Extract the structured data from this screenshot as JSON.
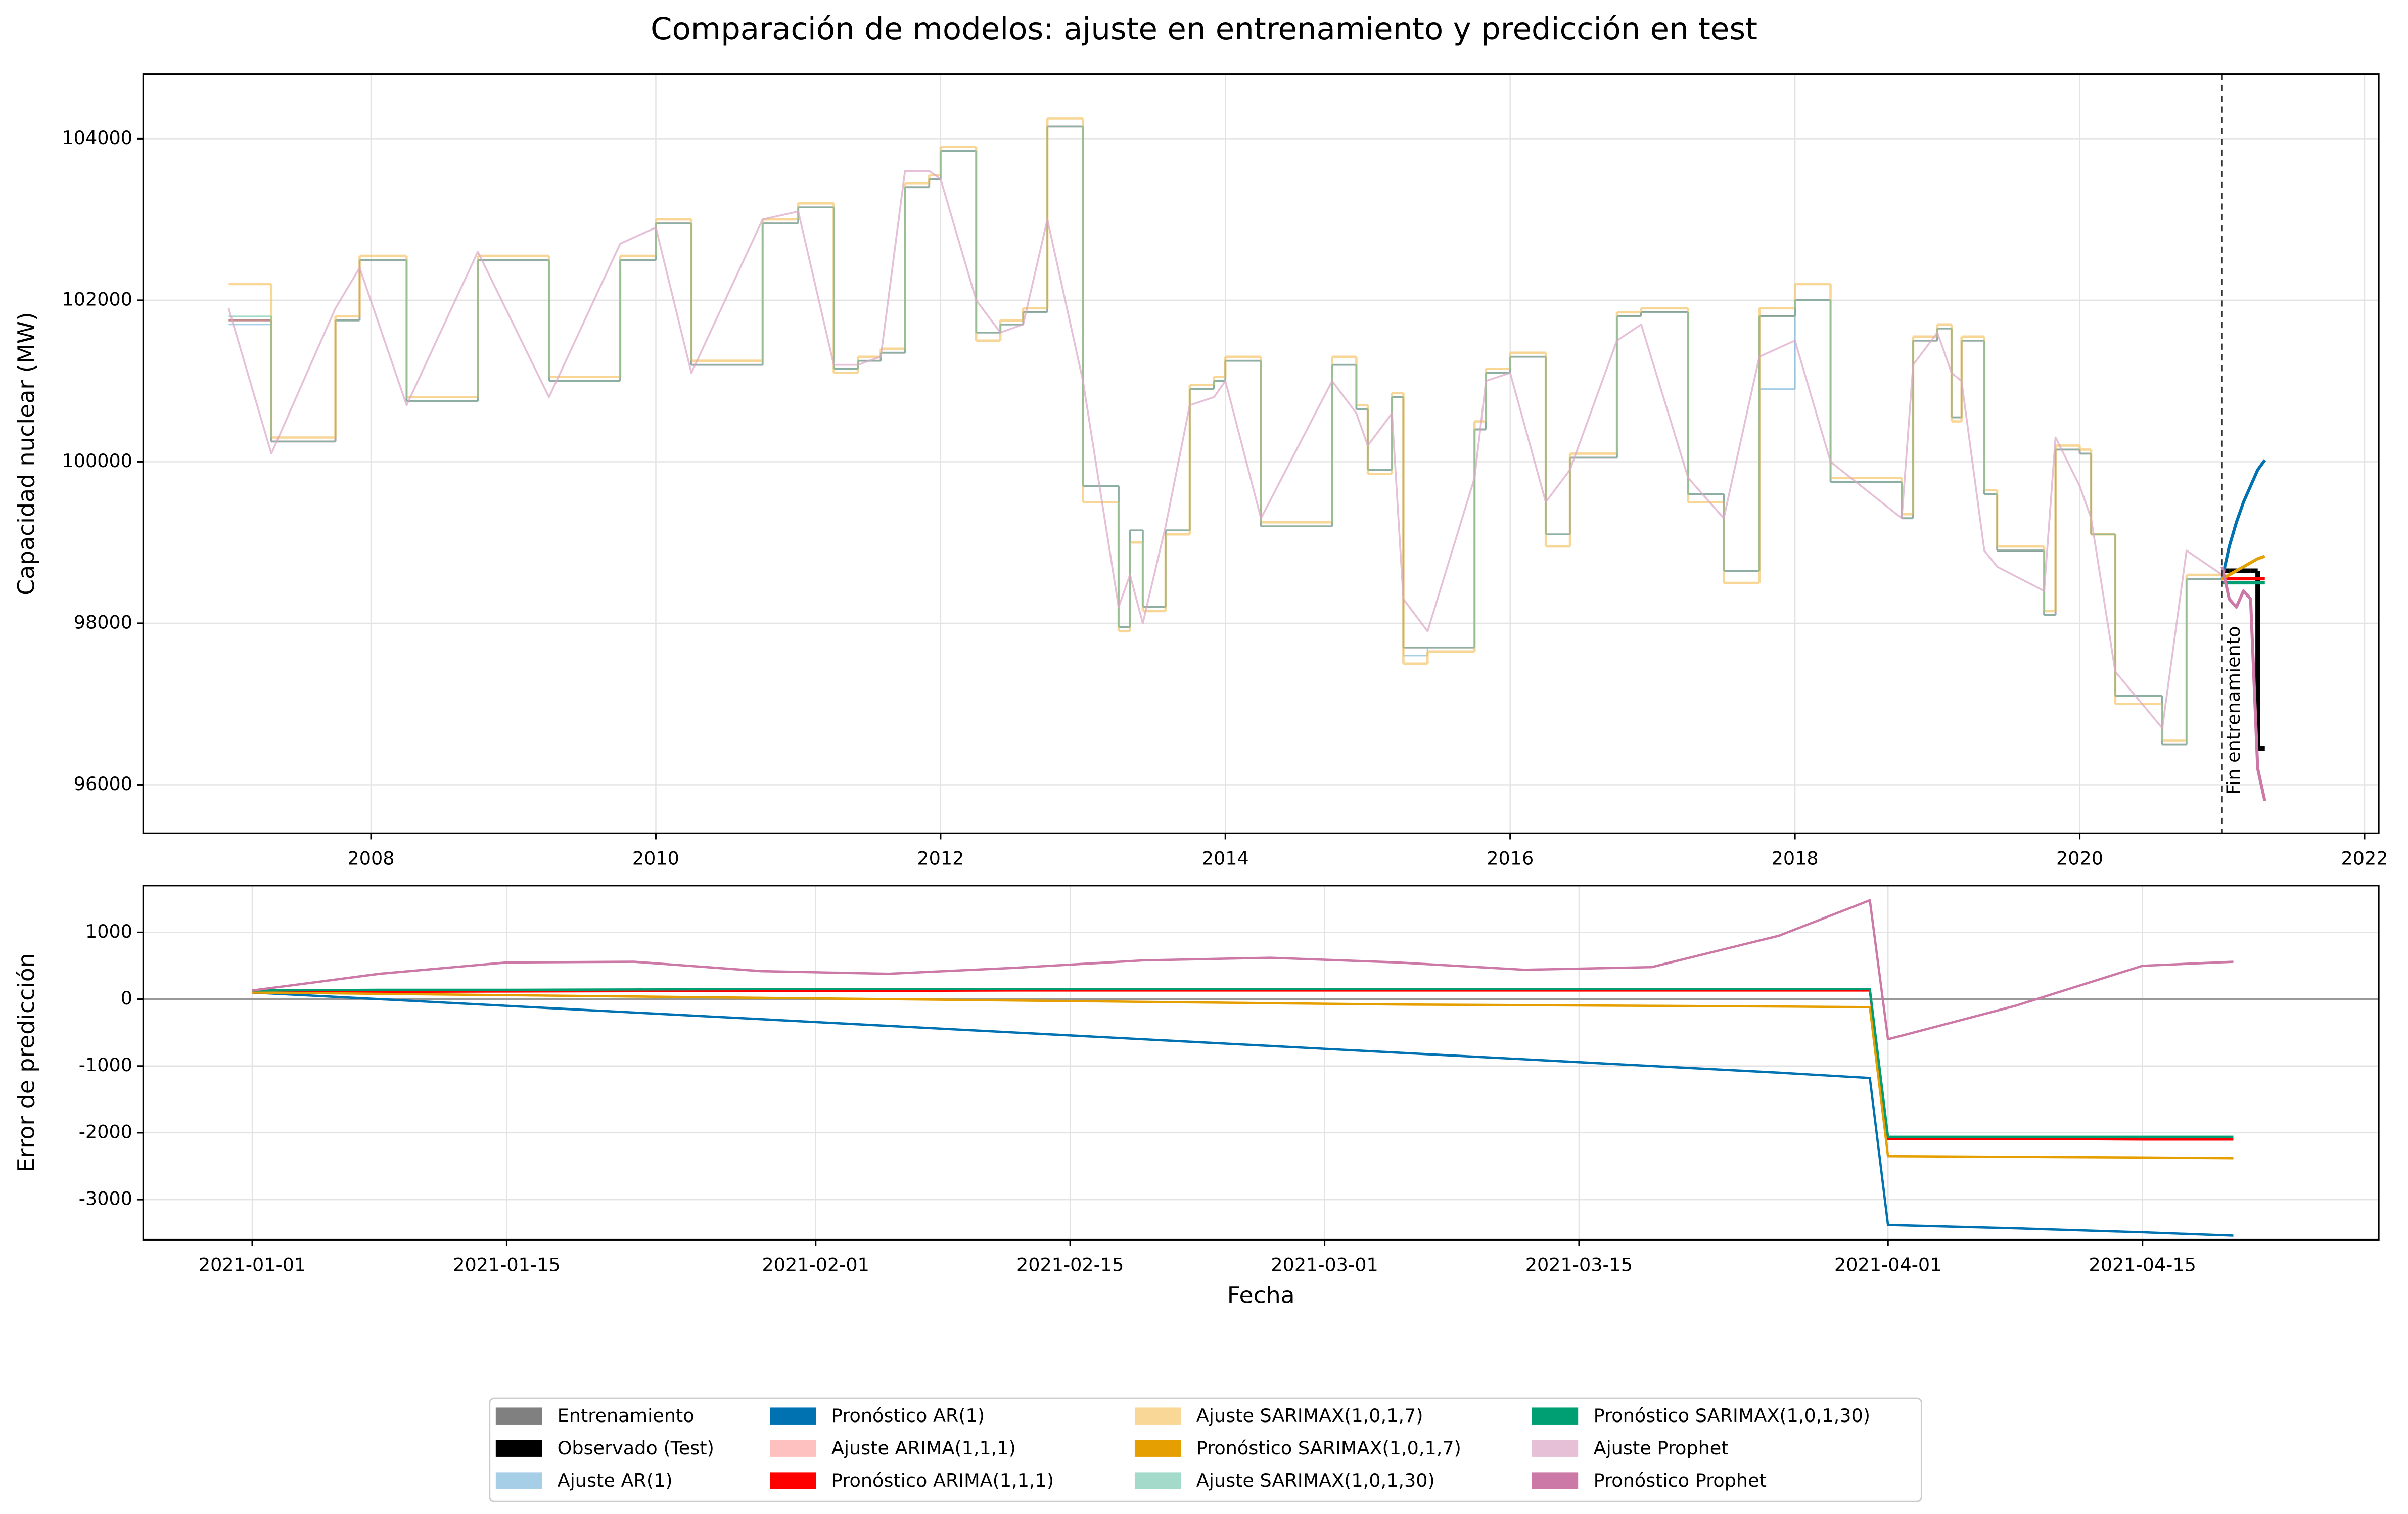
{
  "chart_data": [
    {
      "type": "line",
      "title": "Comparación de modelos: ajuste en entrenamiento y predicción en test",
      "y_label": "Capacidad nuclear (MW)",
      "xlim": [
        2006.4,
        2022.1
      ],
      "xticks": [
        2008,
        2010,
        2012,
        2014,
        2016,
        2018,
        2020,
        2022
      ],
      "ylim": [
        95400,
        104800
      ],
      "yticks": [
        96000,
        98000,
        100000,
        102000,
        104000
      ],
      "grid": true,
      "annotation": {
        "text": "Fin entrenamiento",
        "x": 2021.0
      },
      "x": [
        2007.0,
        2007.3,
        2007.75,
        2007.92,
        2008.25,
        2008.75,
        2009.25,
        2009.75,
        2010.0,
        2010.25,
        2010.75,
        2011.0,
        2011.25,
        2011.42,
        2011.58,
        2011.75,
        2011.92,
        2012.0,
        2012.25,
        2012.42,
        2012.58,
        2012.75,
        2013.0,
        2013.25,
        2013.33,
        2013.42,
        2013.58,
        2013.75,
        2013.92,
        2014.0,
        2014.25,
        2014.75,
        2014.92,
        2015.0,
        2015.17,
        2015.25,
        2015.42,
        2015.75,
        2015.83,
        2016.0,
        2016.25,
        2016.42,
        2016.75,
        2016.92,
        2017.25,
        2017.5,
        2017.75,
        2018.0,
        2018.25,
        2018.75,
        2018.83,
        2019.0,
        2019.1,
        2019.17,
        2019.33,
        2019.42,
        2019.75,
        2019.83,
        2020.0,
        2020.08,
        2020.25,
        2020.58,
        2020.75,
        2021.0
      ],
      "series": [
        {
          "name": "Entrenamiento",
          "color": "#808080",
          "alpha": 1,
          "linewidth": 1.2,
          "step": true,
          "values": [
            101750,
            100250,
            101750,
            102500,
            100750,
            102500,
            101000,
            102500,
            102950,
            101200,
            102950,
            103150,
            101150,
            101250,
            101350,
            103400,
            103500,
            103850,
            101600,
            101700,
            101850,
            104150,
            99700,
            97950,
            99150,
            98200,
            99150,
            100900,
            101000,
            101250,
            99200,
            101200,
            100650,
            99900,
            100800,
            97700,
            97700,
            100400,
            101100,
            101300,
            99100,
            100050,
            101800,
            101850,
            99600,
            98650,
            101800,
            102000,
            99750,
            99300,
            101500,
            101650,
            100550,
            101500,
            99600,
            98900,
            98100,
            100150,
            100100,
            99100,
            97100,
            96500,
            98550,
            98550
          ]
        },
        {
          "name": "Observado (Test)",
          "color": "#000000",
          "alpha": 1,
          "linewidth": 3,
          "step": true,
          "x": [
            2021.0,
            2021.05,
            2021.1,
            2021.15,
            2021.2,
            2021.25,
            2021.3
          ],
          "values": [
            98650,
            98650,
            98650,
            98650,
            98650,
            96450,
            96450
          ]
        },
        {
          "name": "Ajuste AR(1)",
          "color": "#6baed6",
          "alpha": 0.6,
          "linewidth": 1,
          "step": true,
          "values": [
            101700,
            100250,
            101750,
            102500,
            100750,
            102500,
            101000,
            102500,
            102950,
            101200,
            102950,
            103150,
            101150,
            101250,
            101350,
            103400,
            103500,
            103850,
            101600,
            101700,
            101850,
            104150,
            99700,
            97950,
            99150,
            98200,
            99150,
            100900,
            101000,
            101250,
            99200,
            101200,
            100650,
            99900,
            100800,
            97600,
            97700,
            100400,
            101100,
            101300,
            99100,
            100050,
            101800,
            101850,
            99600,
            98650,
            100900,
            102000,
            99750,
            99300,
            101500,
            101650,
            100550,
            101500,
            99600,
            98900,
            98100,
            100150,
            100100,
            99100,
            97100,
            96500,
            98550,
            98550
          ]
        },
        {
          "name": "Pronóstico AR(1)",
          "color": "#0072b2",
          "alpha": 1,
          "linewidth": 2,
          "x": [
            2021.0,
            2021.05,
            2021.1,
            2021.15,
            2021.2,
            2021.25,
            2021.3
          ],
          "values": [
            98550,
            98950,
            99250,
            99500,
            99700,
            99900,
            100020
          ]
        },
        {
          "name": "Ajuste ARIMA(1,1,1)",
          "color": "#ff9896",
          "alpha": 0.6,
          "linewidth": 1,
          "step": true,
          "values": [
            101750,
            100250,
            101750,
            102500,
            100750,
            102500,
            101000,
            102500,
            102950,
            101200,
            102950,
            103150,
            101150,
            101250,
            101350,
            103400,
            103500,
            103850,
            101600,
            101700,
            101850,
            104150,
            99700,
            97950,
            99150,
            98200,
            99150,
            100900,
            101000,
            101250,
            99200,
            101200,
            100650,
            99900,
            100800,
            97700,
            97700,
            100400,
            101100,
            101300,
            99100,
            100050,
            101800,
            101850,
            99600,
            98650,
            101800,
            102000,
            99750,
            99300,
            101500,
            101650,
            100550,
            101500,
            99600,
            98900,
            98100,
            100150,
            100100,
            99100,
            97100,
            96500,
            98550,
            98550
          ]
        },
        {
          "name": "Pronóstico ARIMA(1,1,1)",
          "color": "#ff0000",
          "alpha": 1,
          "linewidth": 2,
          "x": [
            2021.0,
            2021.05,
            2021.1,
            2021.15,
            2021.2,
            2021.25,
            2021.3
          ],
          "values": [
            98550,
            98550,
            98550,
            98550,
            98550,
            98550,
            98550
          ]
        },
        {
          "name": "Ajuste SARIMAX(1,0,1,7)",
          "color": "#f5c66b",
          "alpha": 0.7,
          "linewidth": 1.5,
          "step": true,
          "values": [
            102200,
            100300,
            101800,
            102550,
            100800,
            102550,
            101050,
            102550,
            103000,
            101250,
            103000,
            103200,
            101100,
            101300,
            101400,
            103450,
            103550,
            103900,
            101500,
            101750,
            101900,
            104250,
            99500,
            97900,
            99000,
            98150,
            99100,
            100950,
            101050,
            101300,
            99250,
            101300,
            100700,
            99850,
            100850,
            97500,
            97650,
            100500,
            101150,
            101350,
            98950,
            100100,
            101850,
            101900,
            99500,
            98500,
            101900,
            102200,
            99800,
            99350,
            101550,
            101700,
            100500,
            101550,
            99650,
            98950,
            98150,
            100200,
            100150,
            99100,
            97000,
            96550,
            98600,
            98600
          ]
        },
        {
          "name": "Pronóstico SARIMAX(1,0,1,7)",
          "color": "#e69f00",
          "alpha": 1,
          "linewidth": 2,
          "x": [
            2021.0,
            2021.05,
            2021.1,
            2021.15,
            2021.2,
            2021.25,
            2021.3
          ],
          "values": [
            98550,
            98600,
            98650,
            98700,
            98750,
            98800,
            98830
          ]
        },
        {
          "name": "Ajuste SARIMAX(1,0,1,30)",
          "color": "#66c2a5",
          "alpha": 0.6,
          "linewidth": 1,
          "step": true,
          "values": [
            101800,
            100250,
            101750,
            102500,
            100750,
            102500,
            101000,
            102500,
            102950,
            101200,
            102950,
            103150,
            101150,
            101250,
            101350,
            103400,
            103500,
            103850,
            101600,
            101700,
            101850,
            104150,
            99700,
            97950,
            99150,
            98200,
            99150,
            100900,
            101000,
            101250,
            99200,
            101200,
            100650,
            99900,
            100800,
            97700,
            97700,
            100400,
            101100,
            101300,
            99100,
            100050,
            101800,
            101850,
            99600,
            98650,
            101800,
            102000,
            99750,
            99300,
            101500,
            101650,
            100550,
            101500,
            99600,
            98900,
            98100,
            100150,
            100100,
            99100,
            97100,
            96500,
            98550,
            98550
          ]
        },
        {
          "name": "Pronóstico SARIMAX(1,0,1,30)",
          "color": "#009e73",
          "alpha": 1,
          "linewidth": 2,
          "x": [
            2021.0,
            2021.05,
            2021.1,
            2021.15,
            2021.2,
            2021.25,
            2021.3
          ],
          "values": [
            98500,
            98500,
            98500,
            98500,
            98500,
            98500,
            98500
          ]
        },
        {
          "name": "Ajuste Prophet",
          "color": "#dba5c6",
          "alpha": 0.7,
          "linewidth": 1.2,
          "values": [
            101900,
            100100,
            101900,
            102400,
            100700,
            102600,
            100800,
            102700,
            102900,
            101100,
            103000,
            103100,
            101200,
            101200,
            101300,
            103600,
            103600,
            103500,
            102000,
            101600,
            101700,
            103000,
            101000,
            98200,
            98600,
            98000,
            99200,
            100700,
            100800,
            101000,
            99300,
            101000,
            100600,
            100200,
            100600,
            98300,
            97900,
            99800,
            101000,
            101100,
            99500,
            99900,
            101500,
            101700,
            99800,
            99300,
            101300,
            101500,
            100000,
            99300,
            101200,
            101600,
            101100,
            101000,
            98900,
            98700,
            98400,
            100300,
            99700,
            99300,
            97400,
            96700,
            98900,
            98600
          ]
        },
        {
          "name": "Pronóstico Prophet",
          "color": "#cc79a7",
          "alpha": 1,
          "linewidth": 2,
          "x": [
            2021.0,
            2021.05,
            2021.1,
            2021.15,
            2021.2,
            2021.25,
            2021.3
          ],
          "values": [
            98700,
            98300,
            98200,
            98400,
            98300,
            96200,
            95800
          ]
        }
      ]
    },
    {
      "type": "line",
      "y_label": "Error de predicción",
      "x_label": "Fecha",
      "xlim": [
        "2020-12-26",
        "2021-04-28"
      ],
      "xticks": [
        "2021-01-01",
        "2021-01-15",
        "2021-02-01",
        "2021-02-15",
        "2021-03-01",
        "2021-03-15",
        "2021-04-01",
        "2021-04-15"
      ],
      "ylim": [
        -3600,
        1700
      ],
      "yticks": [
        -3000,
        -2000,
        -1000,
        0,
        1000
      ],
      "grid": true,
      "hline": 0,
      "x": [
        "2021-01-01",
        "2021-01-08",
        "2021-01-15",
        "2021-01-22",
        "2021-01-29",
        "2021-02-05",
        "2021-02-12",
        "2021-02-19",
        "2021-02-26",
        "2021-03-05",
        "2021-03-12",
        "2021-03-19",
        "2021-03-26",
        "2021-03-31",
        "2021-04-01",
        "2021-04-08",
        "2021-04-15",
        "2021-04-20"
      ],
      "series": [
        {
          "color": "#0072b2",
          "alpha": 1,
          "linewidth": 1.5,
          "values": [
            100,
            0,
            -100,
            -200,
            -300,
            -400,
            -500,
            -600,
            -700,
            -800,
            -900,
            -1000,
            -1100,
            -1180,
            -3380,
            -3430,
            -3490,
            -3540
          ]
        },
        {
          "color": "#ff0000",
          "alpha": 1,
          "linewidth": 1.5,
          "values": [
            100,
            110,
            115,
            120,
            125,
            125,
            130,
            130,
            130,
            130,
            130,
            130,
            130,
            130,
            -2090,
            -2090,
            -2100,
            -2100
          ]
        },
        {
          "color": "#e69f00",
          "alpha": 1,
          "linewidth": 1.5,
          "values": [
            100,
            80,
            60,
            40,
            20,
            0,
            -20,
            -40,
            -60,
            -80,
            -90,
            -100,
            -110,
            -120,
            -2350,
            -2360,
            -2370,
            -2380
          ]
        },
        {
          "color": "#009e73",
          "alpha": 1,
          "linewidth": 1.5,
          "values": [
            130,
            140,
            140,
            145,
            150,
            150,
            150,
            150,
            150,
            150,
            150,
            150,
            150,
            150,
            -2060,
            -2060,
            -2060,
            -2060
          ]
        },
        {
          "color": "#cc79a7",
          "alpha": 1,
          "linewidth": 1.5,
          "values": [
            130,
            380,
            550,
            560,
            420,
            380,
            470,
            580,
            620,
            550,
            440,
            480,
            950,
            1480,
            -600,
            -100,
            500,
            560
          ]
        }
      ]
    }
  ]
}
